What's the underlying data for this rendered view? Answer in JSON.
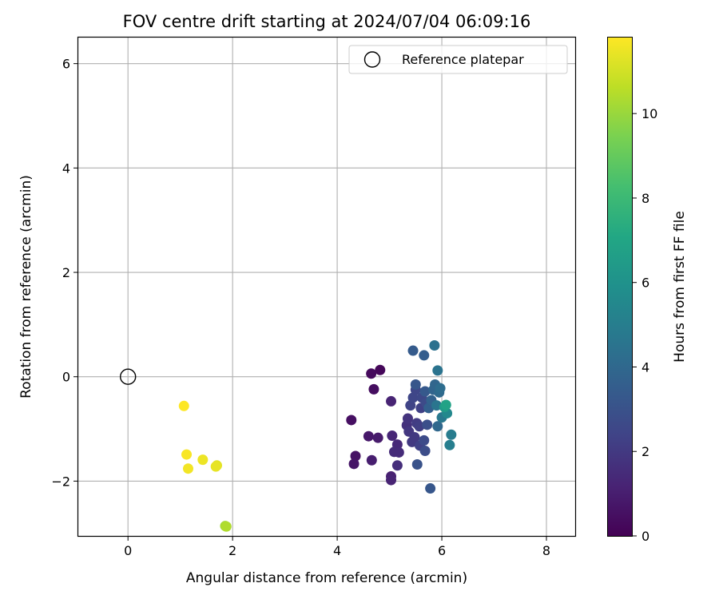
{
  "chart_data": {
    "type": "scatter",
    "title": "FOV centre drift starting at 2024/07/04 06:09:16",
    "xlabel": "Angular distance from reference (arcmin)",
    "ylabel": "Rotation from reference (arcmin)",
    "xlim": [
      -0.95,
      8.55
    ],
    "ylim": [
      -3.05,
      6.5
    ],
    "xticks": [
      0,
      2,
      4,
      6,
      8
    ],
    "yticks": [
      -2,
      0,
      2,
      4,
      6
    ],
    "xtick_labels": [
      "0",
      "2",
      "4",
      "6",
      "8"
    ],
    "ytick_labels": [
      "−2",
      "0",
      "2",
      "4",
      "6"
    ],
    "grid": true,
    "legend": {
      "position": "upper right",
      "entries": [
        {
          "label": "Reference platepar",
          "marker": "open-circle",
          "color": "#000000"
        }
      ]
    },
    "reference_point": {
      "x": 0,
      "y": 0
    },
    "colorbar": {
      "label": "Hours from first FF file",
      "colormap": "viridis",
      "range": [
        0,
        11.8
      ],
      "ticks": [
        0,
        2,
        4,
        6,
        8,
        10
      ],
      "tick_labels": [
        "0",
        "2",
        "4",
        "6",
        "8",
        "10"
      ]
    },
    "points": [
      {
        "x": 4.82,
        "y": 0.13,
        "c": 0.2
      },
      {
        "x": 4.65,
        "y": 0.06,
        "c": 0.3
      },
      {
        "x": 4.7,
        "y": -0.24,
        "c": 0.4
      },
      {
        "x": 4.27,
        "y": -0.83,
        "c": 0.5
      },
      {
        "x": 4.35,
        "y": -1.52,
        "c": 0.6
      },
      {
        "x": 4.32,
        "y": -1.67,
        "c": 0.7
      },
      {
        "x": 4.6,
        "y": -1.14,
        "c": 0.8
      },
      {
        "x": 4.78,
        "y": -1.17,
        "c": 0.9
      },
      {
        "x": 4.66,
        "y": -1.6,
        "c": 1.0
      },
      {
        "x": 5.03,
        "y": -1.91,
        "c": 1.1
      },
      {
        "x": 5.03,
        "y": -1.98,
        "c": 1.2
      },
      {
        "x": 5.03,
        "y": -0.47,
        "c": 1.2
      },
      {
        "x": 5.05,
        "y": -1.13,
        "c": 1.3
      },
      {
        "x": 5.15,
        "y": -1.3,
        "c": 1.4
      },
      {
        "x": 5.09,
        "y": -1.44,
        "c": 1.5
      },
      {
        "x": 5.18,
        "y": -1.45,
        "c": 1.5
      },
      {
        "x": 5.15,
        "y": -1.7,
        "c": 1.6
      },
      {
        "x": 5.33,
        "y": -0.93,
        "c": 1.7
      },
      {
        "x": 5.35,
        "y": -0.8,
        "c": 1.8
      },
      {
        "x": 5.37,
        "y": -1.05,
        "c": 1.9
      },
      {
        "x": 5.43,
        "y": -1.25,
        "c": 2.0
      },
      {
        "x": 5.48,
        "y": -1.16,
        "c": 2.0
      },
      {
        "x": 5.52,
        "y": -0.89,
        "c": 2.1
      },
      {
        "x": 5.57,
        "y": -0.95,
        "c": 2.2
      },
      {
        "x": 5.58,
        "y": -1.32,
        "c": 2.3
      },
      {
        "x": 5.6,
        "y": -0.6,
        "c": 2.3
      },
      {
        "x": 5.4,
        "y": -0.55,
        "c": 2.4
      },
      {
        "x": 5.45,
        "y": -0.4,
        "c": 2.5
      },
      {
        "x": 5.5,
        "y": -0.25,
        "c": 2.5
      },
      {
        "x": 5.62,
        "y": -0.4,
        "c": 2.6
      },
      {
        "x": 5.7,
        "y": -0.5,
        "c": 2.7
      },
      {
        "x": 5.66,
        "y": -1.22,
        "c": 2.7
      },
      {
        "x": 5.68,
        "y": -1.42,
        "c": 2.8
      },
      {
        "x": 5.72,
        "y": -0.92,
        "c": 2.9
      },
      {
        "x": 5.53,
        "y": -1.68,
        "c": 3.0
      },
      {
        "x": 5.78,
        "y": -2.14,
        "c": 3.2
      },
      {
        "x": 5.5,
        "y": -0.15,
        "c": 3.2
      },
      {
        "x": 5.68,
        "y": -0.28,
        "c": 3.3
      },
      {
        "x": 5.45,
        "y": 0.5,
        "c": 3.4
      },
      {
        "x": 5.66,
        "y": 0.41,
        "c": 3.5
      },
      {
        "x": 5.75,
        "y": -0.6,
        "c": 3.6
      },
      {
        "x": 5.8,
        "y": -0.45,
        "c": 3.7
      },
      {
        "x": 5.84,
        "y": -0.25,
        "c": 3.8
      },
      {
        "x": 5.87,
        "y": -0.15,
        "c": 3.9
      },
      {
        "x": 5.92,
        "y": -0.95,
        "c": 4.0
      },
      {
        "x": 5.95,
        "y": -0.3,
        "c": 4.1
      },
      {
        "x": 5.97,
        "y": -0.22,
        "c": 4.2
      },
      {
        "x": 5.86,
        "y": 0.6,
        "c": 4.4
      },
      {
        "x": 5.92,
        "y": 0.12,
        "c": 4.5
      },
      {
        "x": 5.9,
        "y": -0.55,
        "c": 4.6
      },
      {
        "x": 6.0,
        "y": -0.78,
        "c": 4.7
      },
      {
        "x": 6.18,
        "y": -1.11,
        "c": 4.9
      },
      {
        "x": 6.15,
        "y": -1.31,
        "c": 5.0
      },
      {
        "x": 6.1,
        "y": -0.7,
        "c": 5.5
      },
      {
        "x": 6.05,
        "y": -0.58,
        "c": 6.4
      },
      {
        "x": 6.08,
        "y": -0.54,
        "c": 6.8
      },
      {
        "x": 1.86,
        "y": -2.86,
        "c": 10.2
      },
      {
        "x": 1.88,
        "y": -2.87,
        "c": 10.4
      },
      {
        "x": 1.7,
        "y": -1.7,
        "c": 11.3
      },
      {
        "x": 1.68,
        "y": -1.72,
        "c": 11.4
      },
      {
        "x": 1.43,
        "y": -1.59,
        "c": 11.5
      },
      {
        "x": 1.15,
        "y": -1.76,
        "c": 11.6
      },
      {
        "x": 1.12,
        "y": -1.49,
        "c": 11.7
      },
      {
        "x": 1.07,
        "y": -0.56,
        "c": 11.8
      }
    ]
  }
}
